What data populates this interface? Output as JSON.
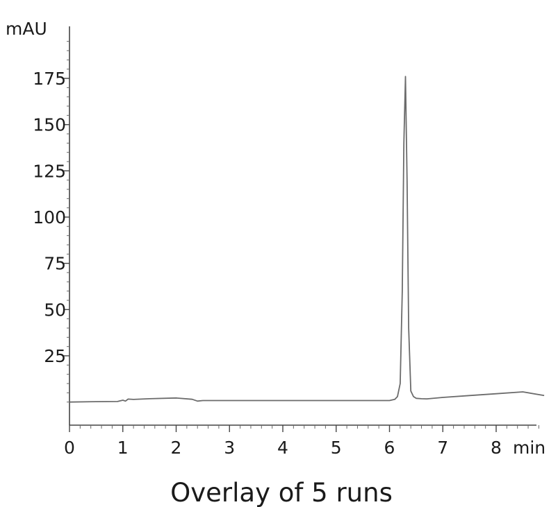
{
  "chart_data": {
    "type": "line",
    "title": "",
    "caption": "Overlay of 5 runs",
    "ylabel": "mAU",
    "xunit": "min",
    "xlim": [
      0,
      8.9
    ],
    "ylim": [
      -25,
      200
    ],
    "xticks": [
      0,
      1,
      2,
      3,
      4,
      5,
      6,
      7,
      8
    ],
    "xtick_labels": [
      "0",
      "1",
      "2",
      "3",
      "4",
      "5",
      "6",
      "7",
      "8"
    ],
    "yticks": [
      25,
      50,
      75,
      100,
      125,
      150,
      175
    ],
    "ytick_labels": [
      "25",
      "50",
      "75",
      "100",
      "125",
      "150",
      "175"
    ],
    "grid": false,
    "line_color": "#6b6b6b",
    "series": [
      {
        "x": [
          0,
          0.5,
          0.9,
          1.0,
          1.05,
          1.1,
          1.2,
          1.5,
          2.0,
          2.3,
          2.4,
          2.5,
          3.0,
          4.0,
          5.0,
          5.6,
          5.9,
          6.0,
          6.1,
          6.15,
          6.2,
          6.24,
          6.27,
          6.3,
          6.33,
          6.36,
          6.4,
          6.45,
          6.5,
          6.6,
          6.7,
          7.0,
          7.5,
          8.0,
          8.5,
          8.9
        ],
        "y": [
          0,
          0.2,
          0.3,
          1.0,
          0.5,
          1.6,
          1.4,
          1.8,
          2.2,
          1.5,
          0.5,
          0.8,
          0.8,
          0.8,
          0.8,
          0.8,
          0.8,
          0.8,
          1.5,
          3,
          10,
          60,
          140,
          176,
          120,
          40,
          6,
          3,
          2,
          1.8,
          1.7,
          2.5,
          3.5,
          4.5,
          5.5,
          3.5
        ]
      }
    ]
  }
}
